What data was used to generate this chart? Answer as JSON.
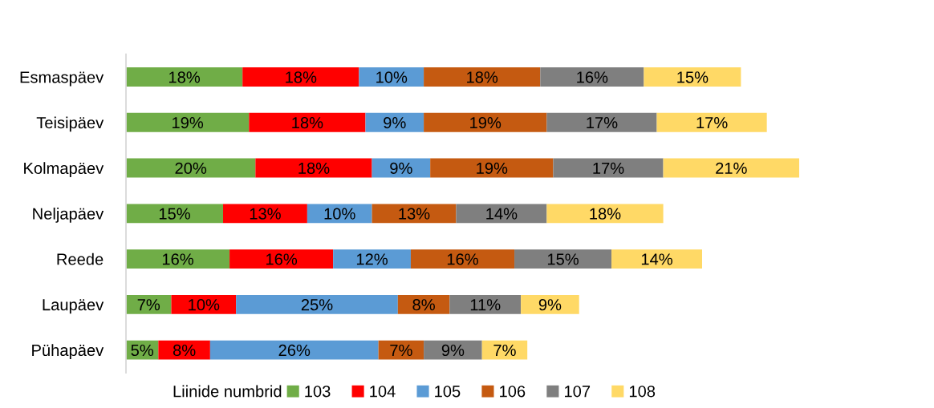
{
  "chart_data": {
    "type": "bar",
    "orientation": "horizontal",
    "stacked": true,
    "tick_labels": "y",
    "legend": "bottom",
    "legend_title": "Liinide numbrid",
    "categories": [
      "Esmaspäev",
      "Teisipäev",
      "Kolmapäev",
      "Neljapäev",
      "Reede",
      "Laupäev",
      "Pühapäev"
    ],
    "series": [
      {
        "name": "103",
        "color": "#70ad47",
        "values": [
          18,
          19,
          20,
          15,
          16,
          7,
          5
        ],
        "value_labels": [
          "18%",
          "19%",
          "20%",
          "15%",
          "16%",
          "7%",
          "5%"
        ]
      },
      {
        "name": "104",
        "color": "#ff0000",
        "values": [
          18,
          18,
          18,
          13,
          16,
          10,
          8
        ],
        "value_labels": [
          "18%",
          "18%",
          "18%",
          "13%",
          "16%",
          "10%",
          "8%"
        ]
      },
      {
        "name": "105",
        "color": "#5b9bd5",
        "values": [
          10,
          9,
          9,
          10,
          12,
          25,
          26
        ],
        "value_labels": [
          "10%",
          "9%",
          "9%",
          "10%",
          "12%",
          "25%",
          "26%"
        ]
      },
      {
        "name": "106",
        "color": "#c55a11",
        "values": [
          18,
          19,
          19,
          13,
          16,
          8,
          7
        ],
        "value_labels": [
          "18%",
          "19%",
          "19%",
          "13%",
          "16%",
          "8%",
          "7%"
        ]
      },
      {
        "name": "107",
        "color": "#7f7f7f",
        "values": [
          16,
          17,
          17,
          14,
          15,
          11,
          9
        ],
        "value_labels": [
          "16%",
          "17%",
          "17%",
          "14%",
          "15%",
          "11%",
          "9%"
        ]
      },
      {
        "name": "108",
        "color": "#ffd966",
        "values": [
          15,
          17,
          21,
          18,
          14,
          9,
          7
        ],
        "value_labels": [
          "15%",
          "17%",
          "21%",
          "18%",
          "14%",
          "9%",
          "7%"
        ]
      }
    ]
  }
}
